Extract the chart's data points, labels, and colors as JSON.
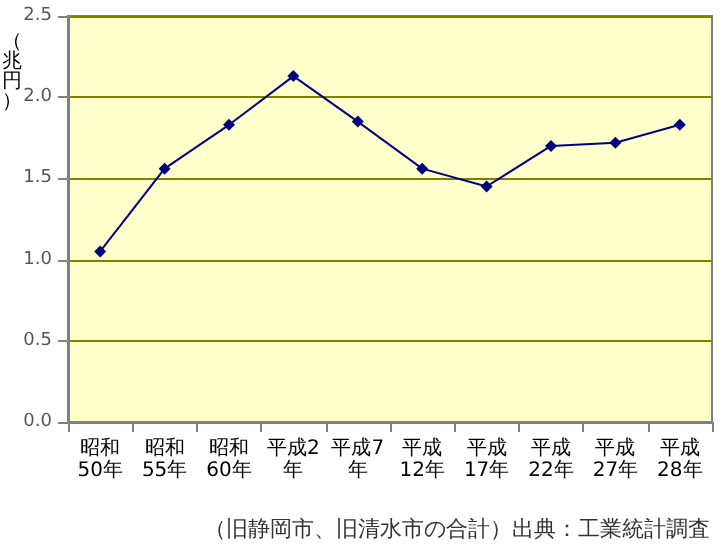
{
  "chart_data": {
    "type": "line",
    "ylabel": "（兆円）",
    "categories": [
      "昭和50年",
      "昭和55年",
      "昭和60年",
      "平成2年",
      "平成7年",
      "平成12年",
      "平成17年",
      "平成22年",
      "平成27年",
      "平成28年"
    ],
    "series": [
      {
        "color": "#000080",
        "values": [
          1.05,
          1.56,
          1.83,
          2.13,
          1.85,
          1.56,
          1.45,
          1.7,
          1.72,
          1.83
        ]
      }
    ],
    "ylim": [
      0,
      2.5
    ],
    "yticks": [
      {
        "value": 0,
        "label": "0.0"
      },
      {
        "value": 0.5,
        "label": "0.5"
      },
      {
        "value": 1,
        "label": "1.0"
      },
      {
        "value": 1.5,
        "label": "1.5"
      },
      {
        "value": 2,
        "label": "2.0"
      },
      {
        "value": 2.5,
        "label": "2.5"
      }
    ],
    "grid": "y",
    "marker": "diamond",
    "line_style": "solid",
    "annotations": [
      "（旧静岡市、旧清水市の合計）出典：工業統計調査"
    ]
  }
}
